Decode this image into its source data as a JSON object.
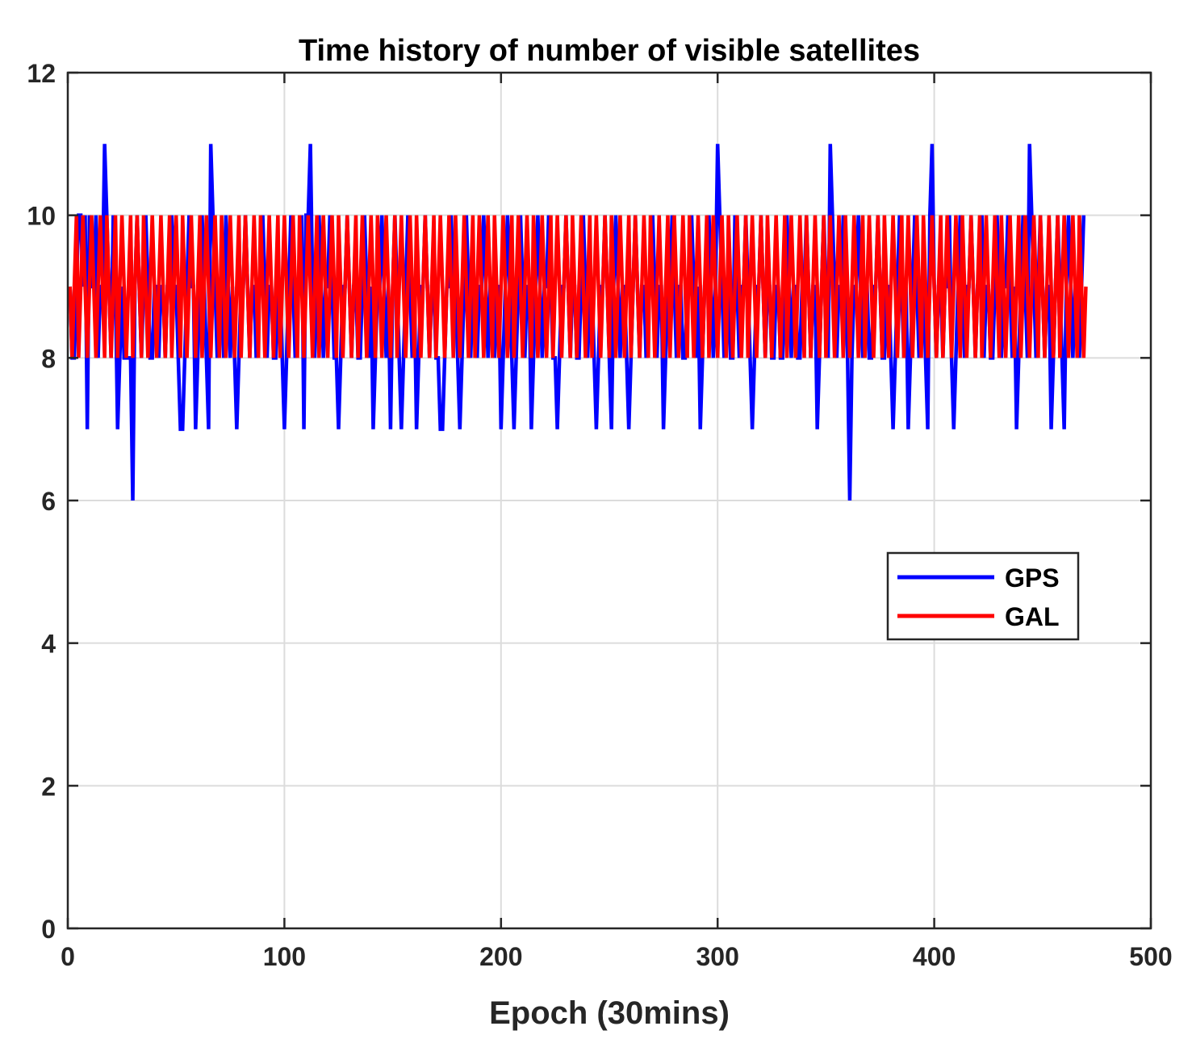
{
  "chart_data": {
    "type": "line",
    "title": "Time history of number of visible satellites",
    "xlabel": "Epoch (30mins)",
    "ylabel": "",
    "xlim": [
      0,
      500
    ],
    "ylim": [
      0,
      12
    ],
    "x_ticks": [
      0,
      100,
      200,
      300,
      400,
      500
    ],
    "y_ticks": [
      0,
      2,
      4,
      6,
      8,
      10,
      12
    ],
    "grid": true,
    "legend_position": "right",
    "series": [
      {
        "name": "GPS",
        "color": "#0000ff",
        "x_start": 1,
        "x_step": 1,
        "values": [
          9,
          8,
          8,
          9,
          10,
          10,
          9,
          10,
          7,
          10,
          9,
          9,
          10,
          8,
          9,
          9,
          11,
          10,
          9,
          8,
          10,
          9,
          7,
          8,
          9,
          8,
          8,
          8,
          8,
          6,
          9,
          10,
          9,
          8,
          9,
          10,
          9,
          8,
          8,
          9,
          9,
          8,
          9,
          9,
          8,
          9,
          9,
          10,
          9,
          9,
          8,
          7,
          7,
          8,
          9,
          10,
          9,
          9,
          7,
          8,
          9,
          10,
          9,
          8,
          7,
          11,
          10,
          9,
          8,
          9,
          9,
          8,
          10,
          9,
          8,
          9,
          8,
          7,
          8,
          9,
          9,
          10,
          9,
          8,
          9,
          9,
          8,
          9,
          9,
          10,
          9,
          8,
          9,
          9,
          8,
          8,
          9,
          9,
          8,
          7,
          8,
          9,
          10,
          9,
          8,
          9,
          9,
          10,
          7,
          10,
          10,
          11,
          9,
          8,
          9,
          10,
          9,
          8,
          9,
          9,
          10,
          9,
          8,
          8,
          7,
          8,
          9,
          9,
          10,
          9,
          8,
          9,
          9,
          8,
          8,
          9,
          10,
          9,
          8,
          9,
          7,
          8,
          9,
          9,
          10,
          9,
          8,
          9,
          7,
          9,
          10,
          9,
          8,
          7,
          8,
          9,
          10,
          9,
          8,
          9,
          7,
          8,
          9,
          9,
          10,
          9,
          8,
          9,
          9,
          8,
          8,
          7,
          7,
          8,
          9,
          9,
          10,
          9,
          9,
          8,
          7,
          8,
          9,
          10,
          9,
          8,
          9,
          9,
          8,
          9,
          9,
          10,
          9,
          8,
          9,
          9,
          8,
          9,
          9,
          7,
          8,
          9,
          10,
          9,
          8,
          7,
          8,
          9,
          10,
          9,
          8,
          9,
          9,
          7,
          8,
          9,
          10,
          9,
          8,
          9,
          9,
          10,
          9,
          8,
          8,
          7,
          8,
          9,
          9,
          10,
          9,
          8,
          9,
          9,
          8,
          8,
          9,
          10,
          9,
          8,
          9,
          9,
          8,
          7,
          8,
          9,
          9,
          10,
          9,
          8,
          7,
          9,
          10,
          9,
          8,
          9,
          9,
          8,
          7,
          8,
          9,
          10,
          9,
          8,
          9,
          9,
          8,
          9,
          9,
          10,
          9,
          8,
          9,
          9,
          7,
          8,
          9,
          9,
          10,
          9,
          8,
          9,
          9,
          8,
          8,
          9,
          9,
          10,
          9,
          8,
          9,
          7,
          8,
          9,
          9,
          10,
          9,
          8,
          9,
          11,
          10,
          9,
          8,
          9,
          9,
          8,
          8,
          10,
          9,
          8,
          9,
          9,
          10,
          9,
          8,
          7,
          8,
          9,
          9,
          10,
          9,
          8,
          9,
          9,
          8,
          8,
          9,
          9,
          8,
          8,
          9,
          10,
          9,
          8,
          9,
          9,
          8,
          8,
          9,
          9,
          10,
          9,
          8,
          9,
          9,
          7,
          8,
          9,
          10,
          9,
          8,
          11,
          10,
          9,
          8,
          9,
          9,
          10,
          9,
          8,
          6,
          8,
          9,
          9,
          10,
          9,
          8,
          9,
          9,
          8,
          8,
          9,
          9,
          10,
          9,
          8,
          8,
          9,
          9,
          8,
          7,
          8,
          9,
          10,
          9,
          8,
          9,
          7,
          8,
          9,
          10,
          9,
          8,
          9,
          9,
          8,
          7,
          10,
          11,
          9,
          8,
          9,
          9,
          8,
          9,
          9,
          10,
          8,
          7,
          8,
          9,
          10,
          9,
          8,
          9,
          9,
          10,
          9,
          8,
          9,
          9,
          10,
          8,
          9,
          9,
          8,
          8,
          9,
          10,
          9,
          8,
          9,
          9,
          10,
          9,
          8,
          9,
          7,
          8,
          9,
          10,
          9,
          8,
          11,
          10,
          9,
          8,
          9,
          10,
          9,
          8,
          9,
          9,
          7,
          8,
          9,
          10,
          9,
          8,
          7,
          9,
          10,
          9,
          8,
          9,
          9,
          8,
          9,
          10
        ]
      },
      {
        "name": "GAL",
        "color": "#ff0000",
        "x_start": 1,
        "x_step": 1,
        "values": [
          9,
          8,
          9,
          10,
          8,
          9,
          10,
          9,
          8,
          9,
          10,
          9,
          8,
          9,
          10,
          9,
          8,
          10,
          9,
          8,
          9,
          10,
          8,
          9,
          10,
          9,
          8,
          9,
          10,
          8,
          9,
          10,
          9,
          8,
          10,
          9,
          8,
          9,
          10,
          9,
          8,
          9,
          10,
          9,
          8,
          9,
          10,
          8,
          9,
          10,
          9,
          8,
          10,
          9,
          8,
          9,
          10,
          9,
          8,
          9,
          10,
          8,
          9,
          10,
          9,
          8,
          9,
          10,
          9,
          8,
          10,
          9,
          8,
          9,
          10,
          9,
          8,
          9,
          10,
          8,
          9,
          10,
          9,
          8,
          9,
          10,
          9,
          8,
          10,
          9,
          8,
          9,
          10,
          9,
          8,
          9,
          10,
          8,
          9,
          10,
          9,
          8,
          9,
          10,
          9,
          8,
          10,
          9,
          8,
          9,
          10,
          9,
          8,
          9,
          10,
          8,
          9,
          10,
          9,
          8,
          9,
          10,
          9,
          8,
          10,
          9,
          8,
          9,
          10,
          9,
          8,
          9,
          10,
          8,
          9,
          10,
          9,
          8,
          9,
          10,
          9,
          8,
          10,
          9,
          8,
          9,
          10,
          9,
          8,
          9,
          10,
          8,
          9,
          10,
          9,
          8,
          9,
          10,
          9,
          8,
          10,
          9,
          8,
          9,
          10,
          9,
          8,
          9,
          10,
          8,
          9,
          10,
          9,
          8,
          9,
          10,
          9,
          8,
          10,
          9,
          8,
          9,
          10,
          9,
          8,
          9,
          10,
          8,
          9,
          10,
          9,
          8,
          9,
          10,
          9,
          8,
          10,
          9,
          8,
          9,
          10,
          9,
          8,
          9,
          10,
          8,
          9,
          10,
          9,
          8,
          9,
          10,
          9,
          8,
          10,
          9,
          8,
          9,
          10,
          9,
          8,
          9,
          10,
          8,
          9,
          10,
          9,
          8,
          9,
          10,
          9,
          8,
          10,
          9,
          8,
          9,
          10,
          9,
          8,
          9,
          10,
          8,
          9,
          10,
          9,
          8,
          9,
          10,
          9,
          8,
          10,
          9,
          8,
          9,
          10,
          9,
          8,
          9,
          10,
          8,
          9,
          10,
          9,
          8,
          9,
          10,
          9,
          8,
          10,
          9,
          8,
          9,
          10,
          9,
          8,
          9,
          10,
          8,
          9,
          10,
          9,
          8,
          9,
          10,
          9,
          8,
          10,
          9,
          8,
          9,
          10,
          9,
          8,
          9,
          10,
          8,
          9,
          10,
          9,
          8,
          9,
          10,
          9,
          8,
          10,
          9,
          8,
          9,
          10,
          9,
          8,
          9,
          10,
          8,
          9,
          10,
          9,
          8,
          9,
          10,
          9,
          8,
          10,
          9,
          8,
          9,
          10,
          9,
          8,
          9,
          10,
          8,
          9,
          10,
          9,
          8,
          9,
          10,
          9,
          8,
          10,
          9,
          8,
          9,
          10,
          9,
          8,
          9,
          10,
          8,
          9,
          10,
          9,
          8,
          9,
          10,
          9,
          8,
          10,
          9,
          8,
          9,
          10,
          9,
          8,
          9,
          10,
          8,
          9,
          10,
          9,
          8,
          9,
          10,
          9,
          8,
          10,
          9,
          8,
          9,
          10,
          9,
          8,
          9,
          10,
          8,
          9,
          10,
          9,
          8,
          9,
          10,
          9,
          8,
          10,
          9,
          8,
          9,
          10,
          9,
          8,
          9,
          10,
          8,
          9,
          10,
          9,
          8,
          9,
          10,
          9,
          8,
          10,
          9,
          8,
          9,
          10,
          9,
          8,
          9,
          10,
          8,
          9,
          10,
          9,
          8,
          9,
          10,
          9,
          8,
          10,
          9,
          8,
          9,
          10,
          9,
          8,
          9,
          10,
          8,
          9,
          10,
          9,
          8,
          9,
          10,
          9,
          8,
          10,
          9,
          8,
          9,
          10,
          9,
          8,
          9,
          10,
          8,
          9,
          10,
          9,
          8,
          9,
          10,
          9,
          8,
          10,
          9,
          8,
          9
        ]
      }
    ]
  }
}
